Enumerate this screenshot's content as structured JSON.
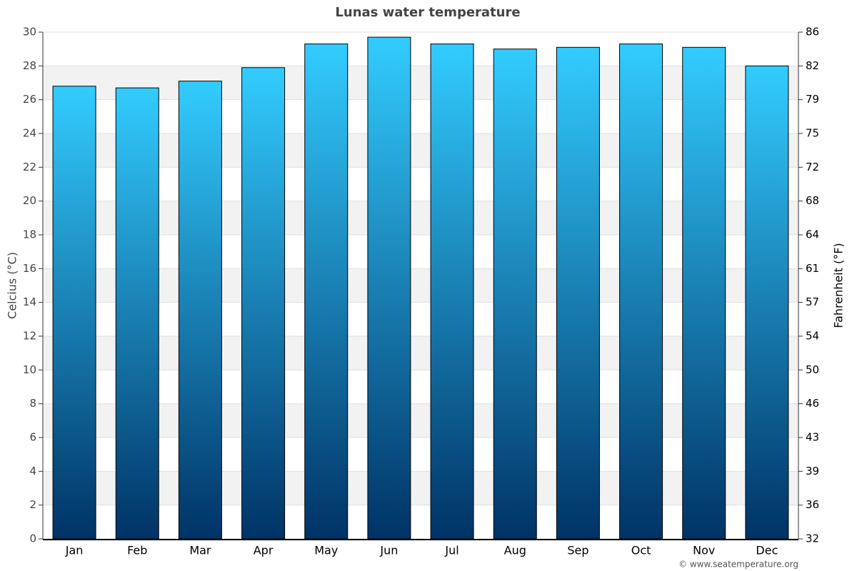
{
  "chart_data": {
    "type": "bar",
    "title": "Lunas water temperature",
    "y_label": "Celcius (°C)",
    "y2_label": "Fahrenheit (°F)",
    "credit": "© www.seatemperature.org",
    "categories": [
      "Jan",
      "Feb",
      "Mar",
      "Apr",
      "May",
      "Jun",
      "Jul",
      "Aug",
      "Sep",
      "Oct",
      "Nov",
      "Dec"
    ],
    "values": [
      26.8,
      26.7,
      27.1,
      27.9,
      29.3,
      29.7,
      29.3,
      29.0,
      29.1,
      29.3,
      29.1,
      28.0
    ],
    "gradient": [
      "#33ccff",
      "#003366"
    ],
    "ylim": [
      0,
      30
    ],
    "yticks": [
      0,
      2,
      4,
      6,
      8,
      10,
      12,
      14,
      16,
      18,
      20,
      22,
      24,
      26,
      28,
      30
    ],
    "y2lim": [
      32,
      86
    ],
    "y2ticks": [
      32,
      {
        "value": 35.6,
        "label": "36"
      },
      {
        "value": 39.2,
        "label": "39"
      },
      {
        "value": 42.8,
        "label": "43"
      },
      {
        "value": 46.4,
        "label": "46"
      },
      50,
      {
        "value": 53.6,
        "label": "54"
      },
      {
        "value": 57.2,
        "label": "57"
      },
      {
        "value": 60.8,
        "label": "61"
      },
      {
        "value": 64.4,
        "label": "64"
      },
      68,
      {
        "value": 71.6,
        "label": "72"
      },
      {
        "value": 75.2,
        "label": "75"
      },
      {
        "value": 78.8,
        "label": "79"
      },
      {
        "value": 82.4,
        "label": "82"
      },
      86
    ],
    "grid": true
  }
}
